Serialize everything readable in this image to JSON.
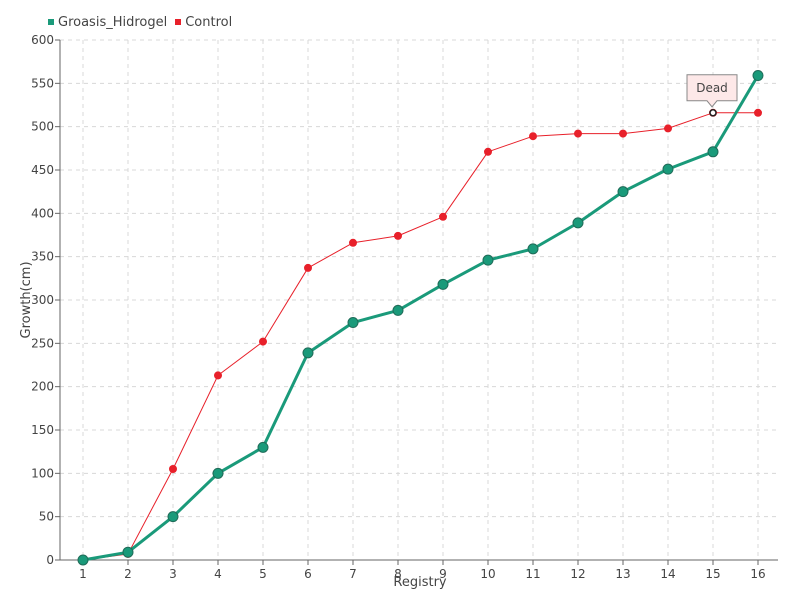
{
  "chart_data": {
    "type": "line",
    "title": "",
    "xlabel": "Registry",
    "ylabel": "Growth(cm)",
    "categories": [
      "1",
      "2",
      "3",
      "4",
      "5",
      "6",
      "7",
      "8",
      "9",
      "10",
      "11",
      "12",
      "13",
      "14",
      "15",
      "16"
    ],
    "ylim": [
      0,
      600
    ],
    "yticks": [
      0,
      50,
      100,
      150,
      200,
      250,
      300,
      350,
      400,
      450,
      500,
      550,
      600
    ],
    "grid": true,
    "legend_placement": "top-left",
    "series": [
      {
        "name": "Groasis_Hidrogel",
        "color": "#1a9a7a",
        "values": [
          0,
          9,
          50,
          100,
          130,
          239,
          274,
          288,
          318,
          346,
          359,
          389,
          425,
          451,
          471,
          559
        ]
      },
      {
        "name": "Control",
        "color": "#e8202a",
        "values": [
          0,
          7,
          105,
          213,
          252,
          337,
          366,
          374,
          396,
          471,
          489,
          492,
          492,
          498,
          516,
          516
        ]
      }
    ],
    "annotations": [
      {
        "text": "Dead",
        "series": "Control",
        "category": "15",
        "value": 516
      }
    ]
  }
}
